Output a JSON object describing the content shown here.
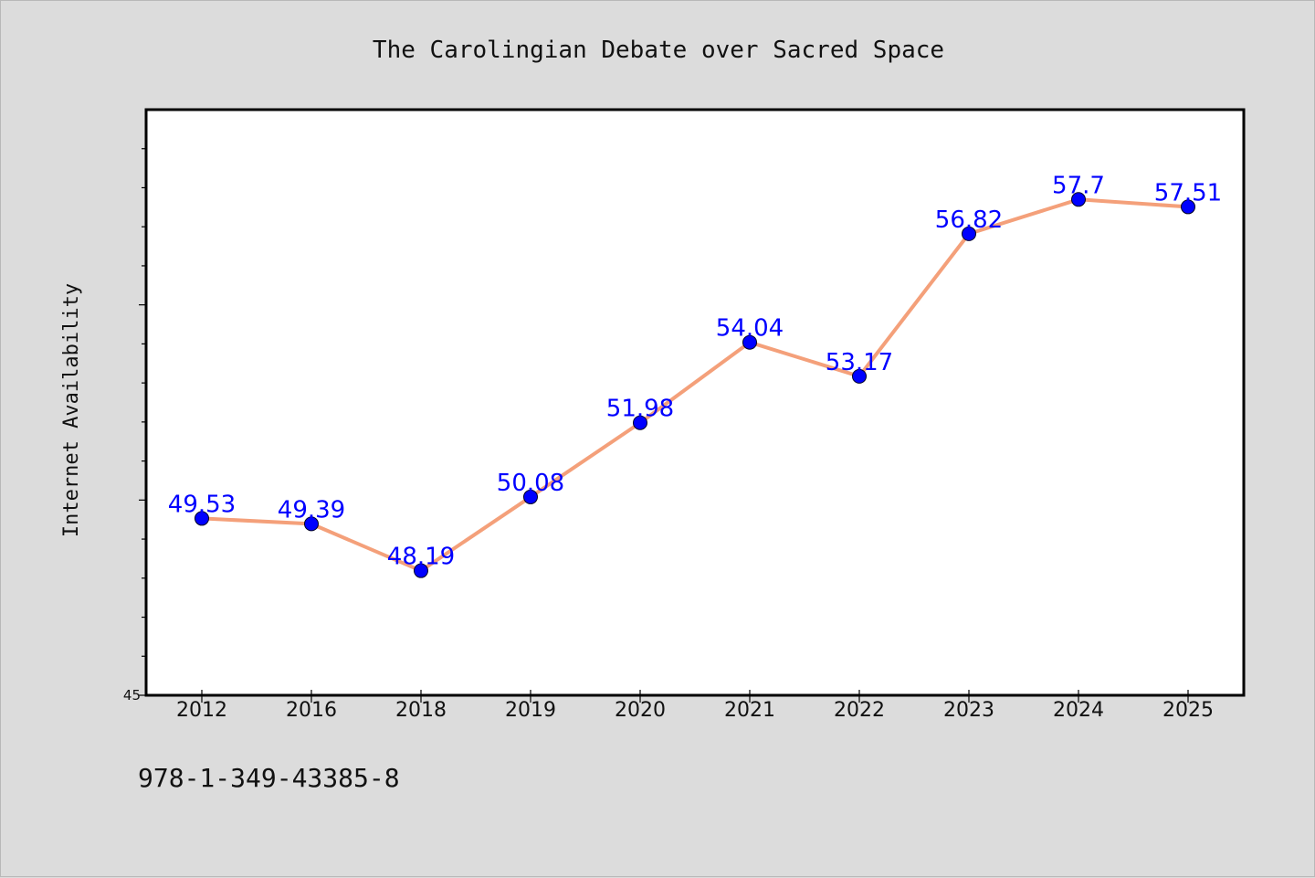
{
  "chart_data": {
    "type": "line",
    "title": "The Carolingian Debate over Sacred Space",
    "xlabel": "",
    "ylabel": "Internet Availability",
    "categories": [
      "2012",
      "2016",
      "2018",
      "2019",
      "2020",
      "2021",
      "2022",
      "2023",
      "2024",
      "2025"
    ],
    "series": [
      {
        "values": [
          49.53,
          49.39,
          48.19,
          50.08,
          51.98,
          54.04,
          53.17,
          56.82,
          57.7,
          57.51
        ],
        "data_labels": [
          "49.53",
          "49.39",
          "48.19",
          "50.08",
          "51.98",
          "54.04",
          "53.17",
          "56.82",
          "57.7",
          "57.51"
        ],
        "line_color": "#f4a07a",
        "marker_color": "#0000ff"
      }
    ],
    "ylim": [
      45,
      60
    ],
    "ytick_labels": [
      "45"
    ],
    "grid": false,
    "legend": "none"
  },
  "footer": {
    "identifier": "978-1-349-43385-8"
  },
  "colors": {
    "background": "#dcdcdc",
    "plot_background": "#ffffff",
    "label_color": "#0000ff"
  }
}
